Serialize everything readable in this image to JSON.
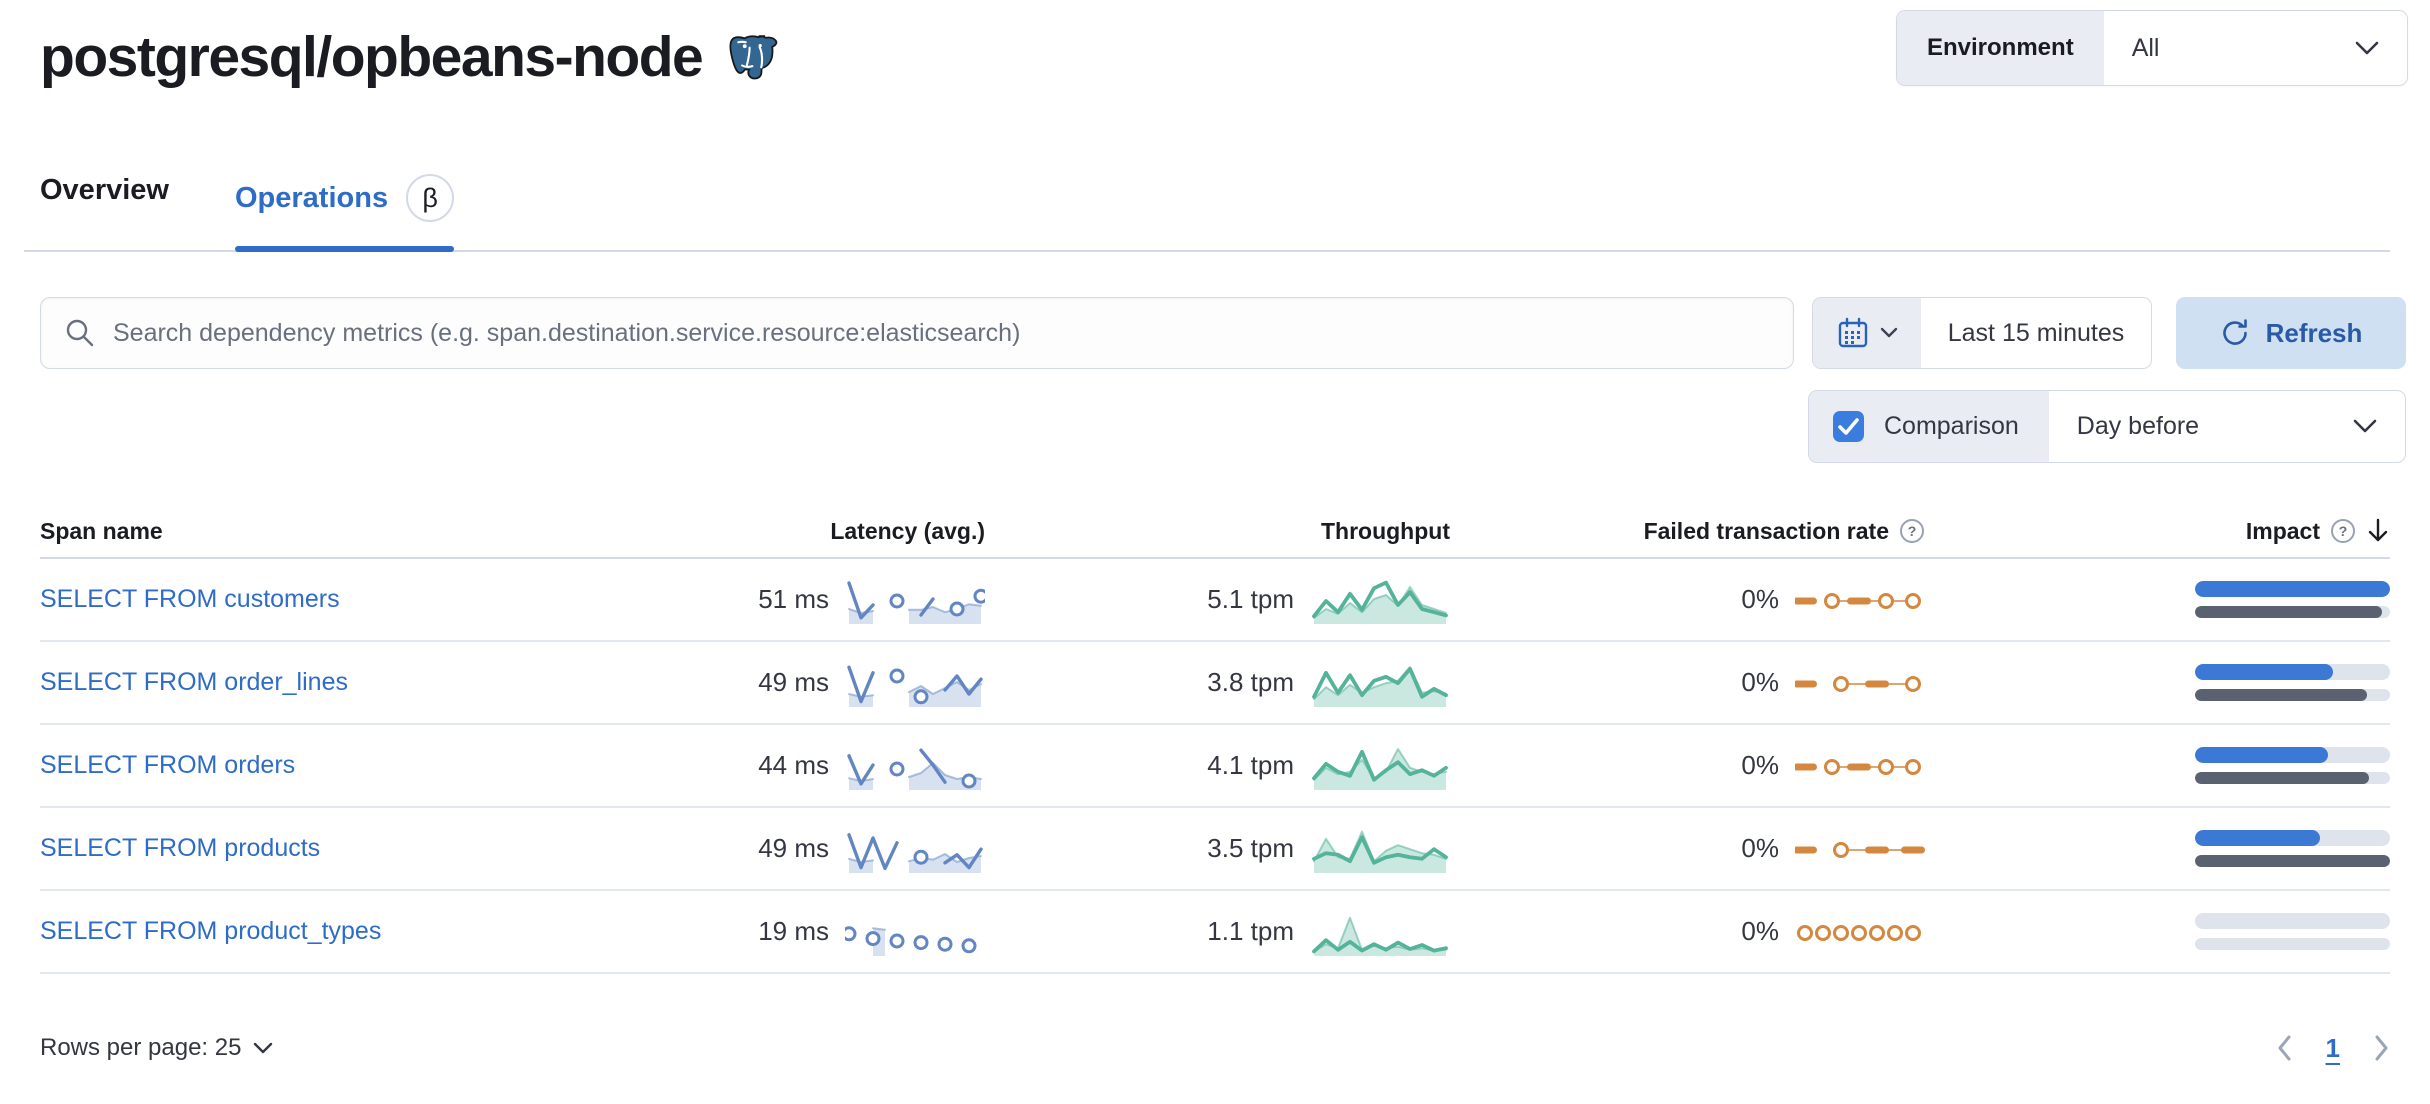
{
  "page": {
    "title": "postgresql/opbeans-node"
  },
  "environment": {
    "label": "Environment",
    "value": "All"
  },
  "tabs": {
    "overview": "Overview",
    "operations": "Operations",
    "beta": "β"
  },
  "toolbar": {
    "search_placeholder": "Search dependency metrics (e.g. span.destination.service.resource:elasticsearch)",
    "time_range": "Last 15 minutes",
    "refresh_label": "Refresh"
  },
  "comparison": {
    "label": "Comparison",
    "checked": true,
    "value": "Day before"
  },
  "table": {
    "headers": {
      "span": "Span name",
      "latency": "Latency (avg.)",
      "throughput": "Throughput",
      "failed": "Failed transaction rate",
      "impact": "Impact"
    },
    "rows": [
      {
        "span_name": "SELECT FROM customers",
        "latency": "51 ms",
        "throughput": "5.1 tpm",
        "failed_rate": "0%"
      },
      {
        "span_name": "SELECT FROM order_lines",
        "latency": "49 ms",
        "throughput": "3.8 tpm",
        "failed_rate": "0%"
      },
      {
        "span_name": "SELECT FROM orders",
        "latency": "44 ms",
        "throughput": "4.1 tpm",
        "failed_rate": "0%"
      },
      {
        "span_name": "SELECT FROM products",
        "latency": "49 ms",
        "throughput": "3.5 tpm",
        "failed_rate": "0%"
      },
      {
        "span_name": "SELECT FROM product_types",
        "latency": "19 ms",
        "throughput": "1.1 tpm",
        "failed_rate": "0%"
      }
    ]
  },
  "footer": {
    "rows_per_page": "Rows per page: 25",
    "page": "1"
  },
  "colors": {
    "link_blue": "#2e6cc7",
    "latency_spark": "#6286c2",
    "throughput_spark": "#54b399",
    "failed_spark": "#d4873f",
    "impact_current": "#3b79d4",
    "impact_previous": "#5a6170",
    "impact_track": "#dfe3ec",
    "refresh_bg": "#cfe0f2",
    "checkbox_blue": "#3b7dde"
  },
  "chart_data": {
    "type": "table-sparklines",
    "note": "sparkline values normalized 0-100 of mini-chart height; null = data gap; isolated points render as hollow dots; previous-period series renders as light filled area; comparison period = Day before",
    "rows": [
      {
        "span": "SELECT FROM customers",
        "latency": {
          "label": "51 ms",
          "current": [
            95,
            8,
            40,
            null,
            50,
            null,
            15,
            55,
            null,
            30,
            null,
            62
          ],
          "previous_area": [
            30,
            20,
            25,
            null,
            null,
            28,
            28,
            35,
            22,
            30,
            42,
            38
          ]
        },
        "throughput": {
          "label": "5.1 tpm",
          "current": [
            12,
            50,
            22,
            68,
            28,
            82,
            96,
            40,
            72,
            30,
            22,
            14
          ],
          "previous": [
            8,
            30,
            18,
            45,
            22,
            55,
            65,
            38,
            85,
            40,
            30,
            20
          ]
        },
        "failed": {
          "label": "0%",
          "pattern": [
            "dash",
            "circle",
            "dash",
            "circle",
            "circle"
          ]
        },
        "impact": {
          "current": 100,
          "previous": 96
        }
      },
      {
        "span": "SELECT FROM order_lines",
        "latency": {
          "label": "49 ms",
          "current": [
            92,
            6,
            78,
            null,
            70,
            null,
            18,
            null,
            35,
            70,
            25,
            62
          ],
          "previous_area": [
            25,
            18,
            22,
            null,
            null,
            30,
            45,
            25,
            40,
            55,
            35,
            50
          ]
        },
        "throughput": {
          "label": "3.8 tpm",
          "current": [
            18,
            78,
            28,
            72,
            22,
            58,
            68,
            52,
            88,
            18,
            38,
            22
          ],
          "previous": [
            12,
            42,
            22,
            48,
            28,
            42,
            52,
            58,
            92,
            28,
            32,
            26
          ]
        },
        "failed": {
          "label": "0%",
          "pattern": [
            "dash",
            "circle",
            "dash",
            "circle"
          ]
        },
        "impact": {
          "current": 71,
          "previous": 88
        }
      },
      {
        "span": "SELECT FROM orders",
        "latency": {
          "label": "44 ms",
          "current": [
            78,
            8,
            55,
            null,
            45,
            null,
            92,
            55,
            12,
            null,
            15,
            null
          ],
          "previous_area": [
            22,
            15,
            20,
            null,
            null,
            25,
            35,
            60,
            30,
            20,
            25,
            20
          ]
        },
        "throughput": {
          "label": "4.1 tpm",
          "current": [
            22,
            58,
            38,
            28,
            88,
            18,
            42,
            62,
            32,
            42,
            28,
            48
          ],
          "previous": [
            18,
            48,
            32,
            38,
            68,
            22,
            38,
            95,
            48,
            38,
            32,
            38
          ]
        },
        "failed": {
          "label": "0%",
          "pattern": [
            "dash",
            "circle",
            "dash",
            "circle",
            "circle"
          ]
        },
        "impact": {
          "current": 68,
          "previous": 89
        }
      },
      {
        "span": "SELECT FROM products",
        "latency": {
          "label": "49 ms",
          "current": [
            88,
            6,
            80,
            4,
            68,
            null,
            32,
            null,
            18,
            38,
            6,
            52
          ],
          "previous_area": [
            28,
            20,
            24,
            null,
            null,
            22,
            30,
            26,
            40,
            20,
            30,
            35
          ]
        },
        "throughput": {
          "label": "3.5 tpm",
          "current": [
            28,
            42,
            38,
            22,
            82,
            18,
            32,
            38,
            32,
            28,
            52,
            32
          ],
          "previous": [
            22,
            78,
            32,
            28,
            96,
            22,
            48,
            62,
            52,
            42,
            38,
            28
          ]
        },
        "failed": {
          "label": "0%",
          "pattern": [
            "dash",
            "circle",
            "dash",
            "dash"
          ]
        },
        "impact": {
          "current": 64,
          "previous": 100
        }
      },
      {
        "span": "SELECT FROM product_types",
        "latency": {
          "label": "19 ms",
          "current": [
            48,
            null,
            36,
            null,
            30,
            null,
            26,
            null,
            22,
            null,
            18,
            null
          ],
          "previous_area": [
            null,
            null,
            62,
            58,
            null,
            null,
            null,
            null,
            null,
            null,
            null,
            null
          ]
        },
        "throughput": {
          "label": "1.1 tpm",
          "current": [
            4,
            32,
            8,
            28,
            6,
            22,
            8,
            26,
            10,
            20,
            6,
            12
          ],
          "previous": [
            4,
            22,
            12,
            88,
            8,
            18,
            12,
            16,
            8,
            12,
            6,
            8
          ]
        },
        "failed": {
          "label": "0%",
          "pattern": [
            "circle",
            "circle",
            "circle",
            "circle",
            "circle",
            "circle",
            "circle"
          ]
        },
        "impact": {
          "current": 0,
          "previous": 0
        }
      }
    ]
  }
}
